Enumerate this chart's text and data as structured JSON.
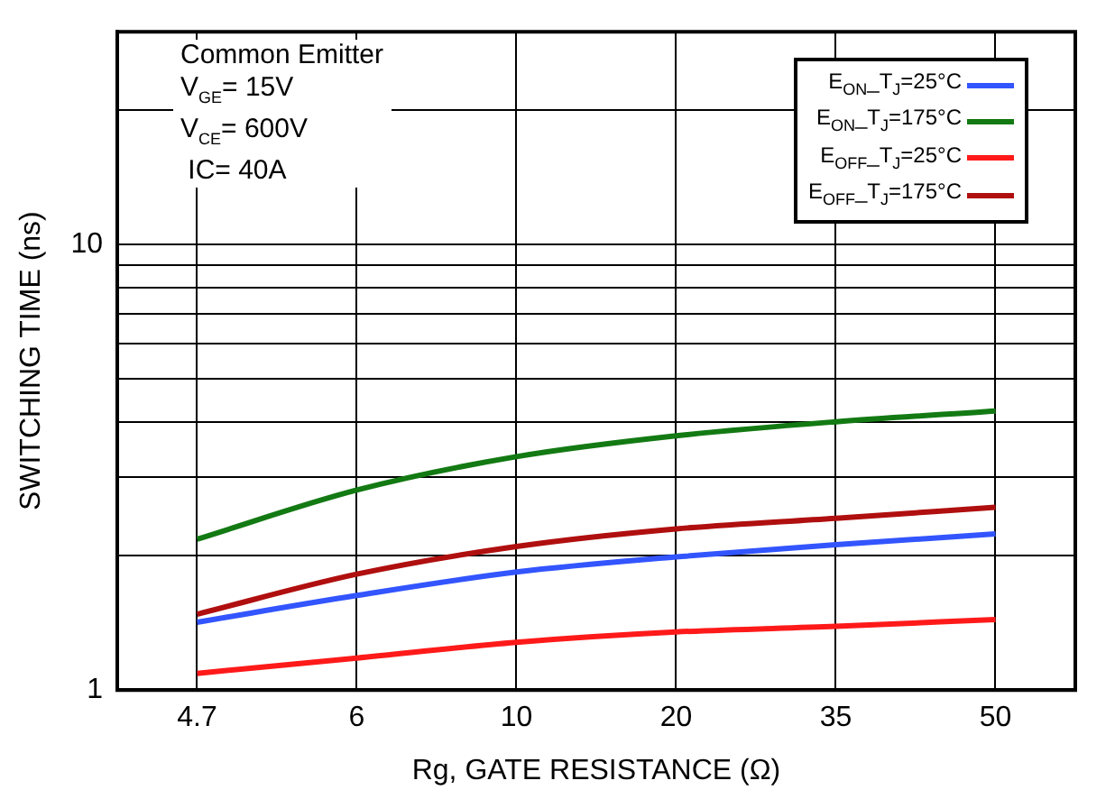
{
  "chart_data": {
    "type": "line",
    "xlabel": "Rg, GATE RESISTANCE (Ω)",
    "ylabel": "SWITCHING TIME (ns)",
    "categories": [
      "4.7",
      "6",
      "10",
      "20",
      "35",
      "50"
    ],
    "series": [
      {
        "name": "E$_{ON}$_T$_{J}$=25°C",
        "color": "#3355ff",
        "values": [
          1.42,
          1.63,
          1.84,
          1.99,
          2.12,
          2.24
        ]
      },
      {
        "name": "E$_{ON}$_T$_{J}$=175°C",
        "color": "#137a13",
        "values": [
          2.18,
          2.81,
          3.34,
          3.72,
          4.0,
          4.23
        ]
      },
      {
        "name": "E$_{OFF}$_T$_{J}$=25°C",
        "color": "#ff1a1a",
        "values": [
          1.09,
          1.18,
          1.28,
          1.35,
          1.39,
          1.44
        ]
      },
      {
        "name": "E$_{OFF}$_T$_{J}$=175°C",
        "color": "#b00f0f",
        "values": [
          1.48,
          1.82,
          2.1,
          2.3,
          2.43,
          2.57
        ]
      }
    ],
    "log": "y",
    "ylim": [
      1,
      30
    ],
    "yticks": [
      1,
      {
        "value": 2,
        "label": null
      },
      {
        "value": 3,
        "label": null
      },
      {
        "value": 4,
        "label": null
      },
      {
        "value": 5,
        "label": null
      },
      {
        "value": 6,
        "label": null
      },
      {
        "value": 7,
        "label": null
      },
      {
        "value": 8,
        "label": null
      },
      {
        "value": 9,
        "label": null
      },
      10,
      {
        "value": 20,
        "label": null
      },
      {
        "value": 30,
        "label": null
      }
    ],
    "grid": true,
    "legend": "top right",
    "marker": "none",
    "line_style": "solid",
    "annotations": [
      "Common Emitter",
      "V$_{GE}$= 15V",
      "V$_{CE}$= 600V",
      " IC= 40A"
    ]
  }
}
